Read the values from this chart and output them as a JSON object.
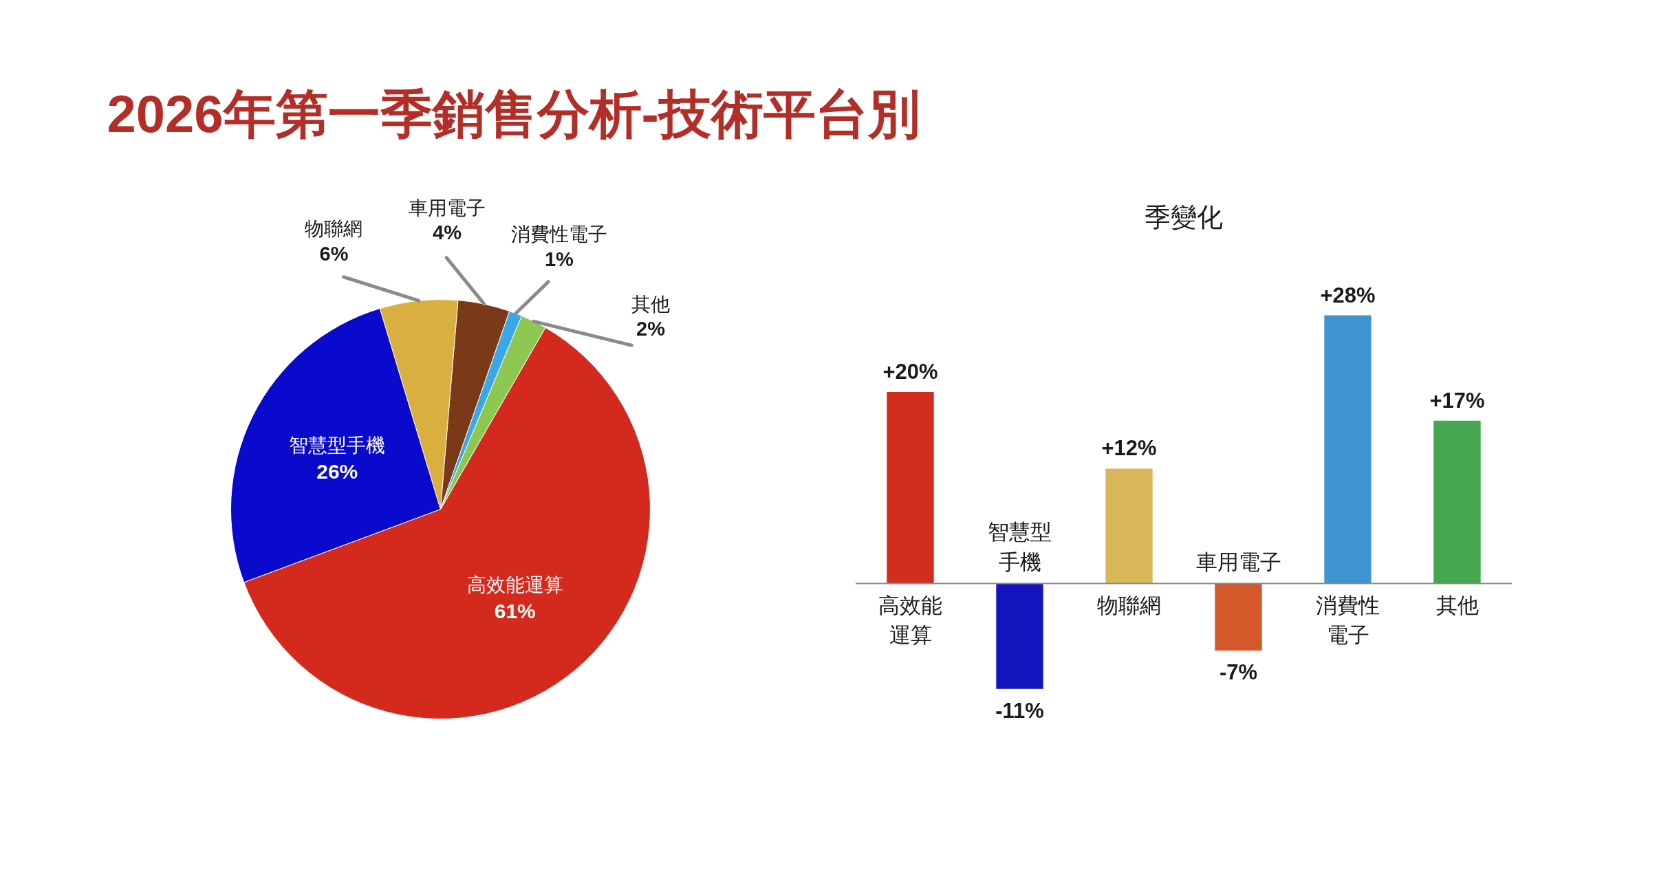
{
  "chart_data": [
    {
      "type": "pie",
      "title": "2026年第一季銷售分析-技術平台別",
      "categories": [
        "高效能運算",
        "智慧型手機",
        "物聯網",
        "車用電子",
        "消費性電子",
        "其他"
      ],
      "values": [
        61,
        26,
        6,
        4,
        1,
        2
      ],
      "colors": [
        "#d42a1e",
        "#0a0acc",
        "#d9b040",
        "#7a3a18",
        "#3aa8e8",
        "#8cc850"
      ],
      "value_labels": [
        "61%",
        "26%",
        "6%",
        "4%",
        "1%",
        "2%"
      ]
    },
    {
      "type": "bar",
      "title": "季變化",
      "categories": [
        "高效能運算",
        "智慧型手機",
        "物聯網",
        "車用電子",
        "消費性電子",
        "其他"
      ],
      "values": [
        20,
        -11,
        12,
        -7,
        28,
        17
      ],
      "colors": [
        "#d22e20",
        "#1515c0",
        "#d9b65a",
        "#d4582a",
        "#3f95d0",
        "#45a850"
      ],
      "value_labels": [
        "+20%",
        "-11%",
        "+12%",
        "-7%",
        "+28%",
        "+17%"
      ]
    }
  ]
}
